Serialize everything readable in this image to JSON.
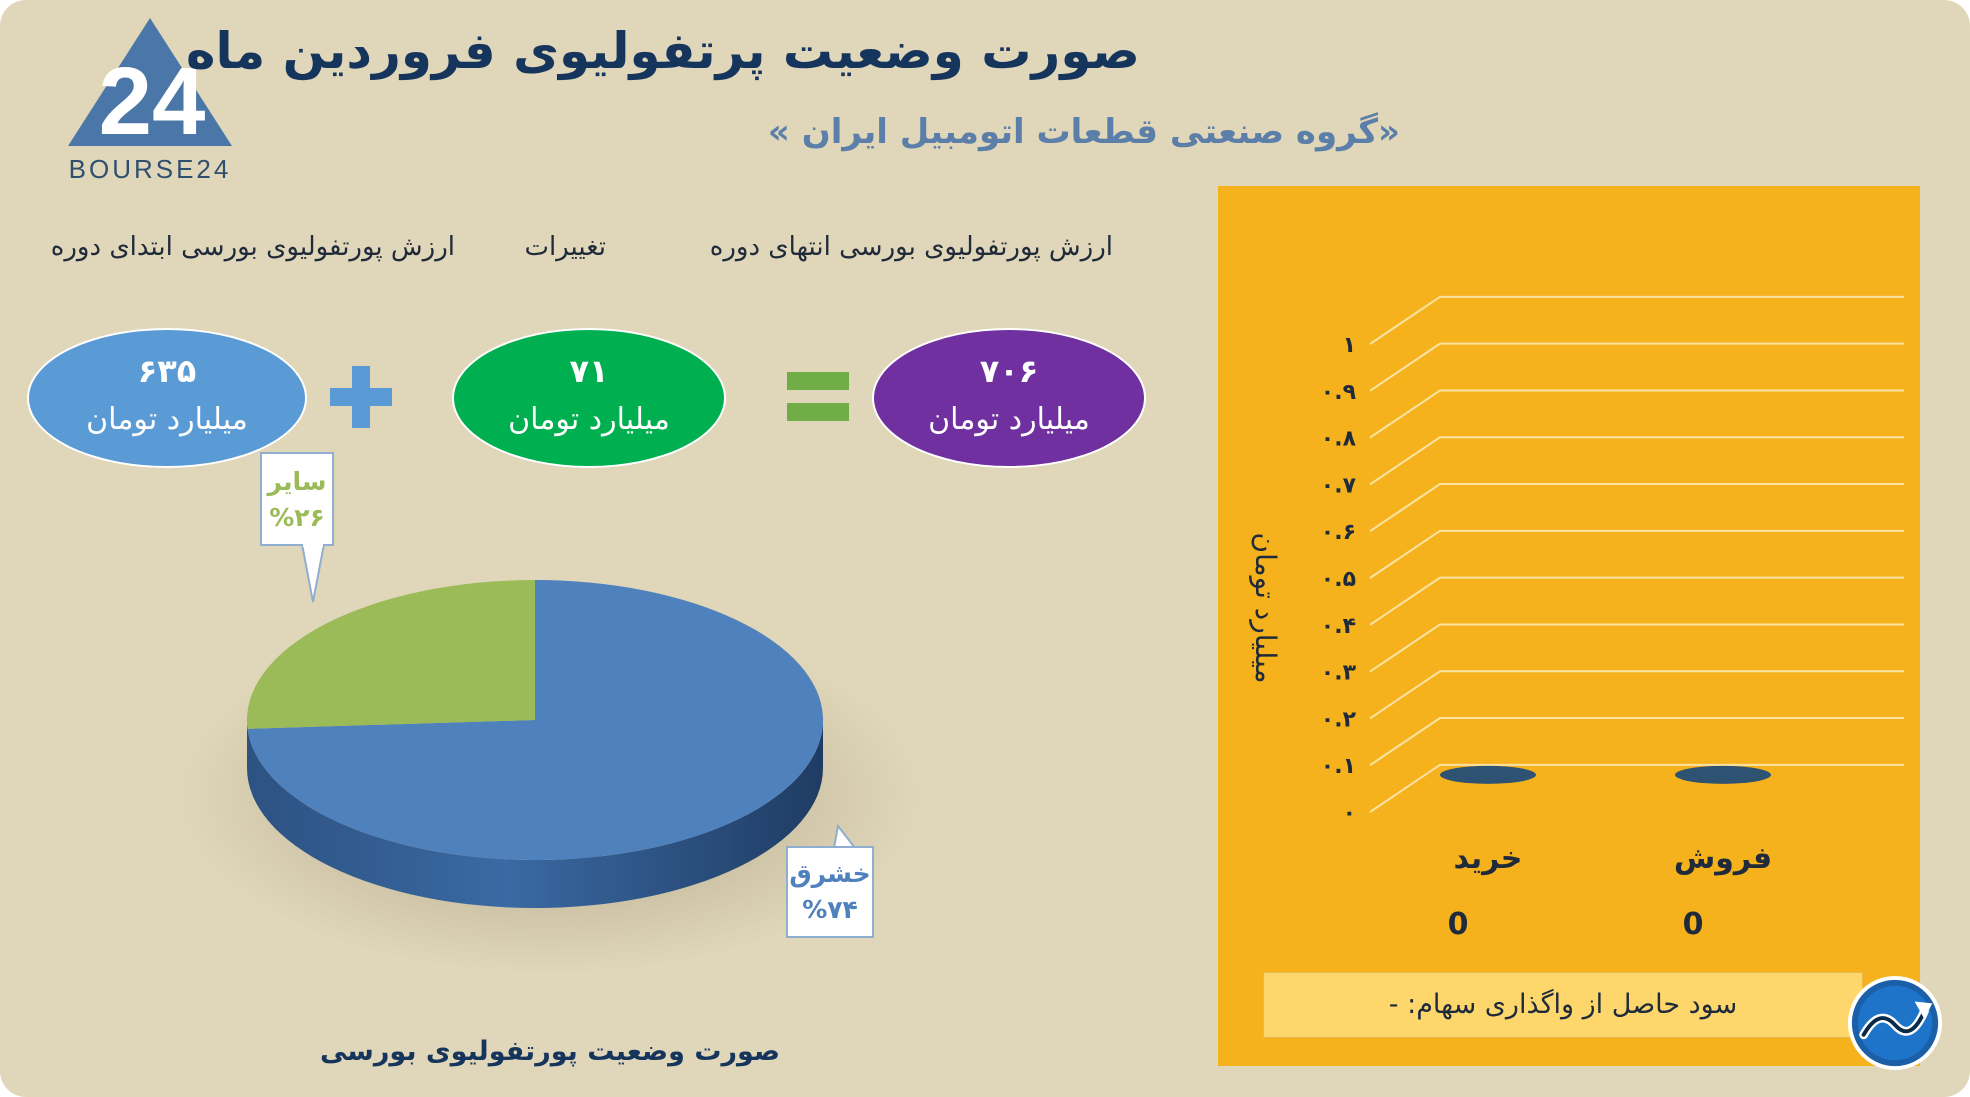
{
  "header": {
    "title": "صورت وضعیت پرتفولیوی فروردین ماه",
    "subtitle": "«گروه صنعتی قطعات اتومبیل ایران »"
  },
  "logo": {
    "text": "BOURSE24",
    "mark": "24"
  },
  "summary": {
    "labels": {
      "start": "ارزش پورتفولیوی بورسی ابتدای دوره",
      "change": "تغییرات",
      "end": "ارزش پورتفولیوی بورسی انتهای دوره"
    },
    "start": {
      "value": "۶۳۵",
      "unit": "میلیارد تومان",
      "color": "#5b9bd5"
    },
    "change": {
      "value": "۷۱",
      "unit": "میلیارد تومان",
      "color": "#00b050"
    },
    "end": {
      "value": "۷۰۶",
      "unit": "میلیارد تومان",
      "color": "#7030a0"
    },
    "plus_color": "#5b9bd5",
    "equals_color": "#70ad47"
  },
  "pie": {
    "caption": "صورت وضعیت پورتفولیوی بورسی",
    "callouts": {
      "others": {
        "name": "سایر",
        "pct": "%۲۶"
      },
      "khshrq": {
        "name": "خشرق",
        "pct": "%۷۴"
      }
    }
  },
  "chart_data": [
    {
      "type": "pie",
      "title": "صورت وضعیت پورتفولیوی بورسی",
      "categories": [
        "خشرق",
        "سایر"
      ],
      "values": [
        74,
        26
      ],
      "colors": [
        "#4f81bd",
        "#9bbb59"
      ]
    },
    {
      "type": "bar",
      "categories": [
        "خرید",
        "فروش"
      ],
      "values": [
        0,
        0
      ],
      "value_labels": [
        "0",
        "0"
      ],
      "ylabel": "میلیارد تومان",
      "ylim": [
        0,
        1
      ],
      "y_ticks": [
        "۰",
        "۰.۱",
        "۰.۲",
        "۰.۳",
        "۰.۴",
        "۰.۵",
        "۰.۶",
        "۰.۷",
        "۰.۸",
        "۰.۹",
        "۱"
      ],
      "grid": true,
      "colors": {
        "panel": "#f6b21d",
        "bar": "#2e5272",
        "grid": "#fbe3a4"
      }
    }
  ],
  "profit": {
    "text": "سود حاصل از واگذاری سهام: -"
  }
}
